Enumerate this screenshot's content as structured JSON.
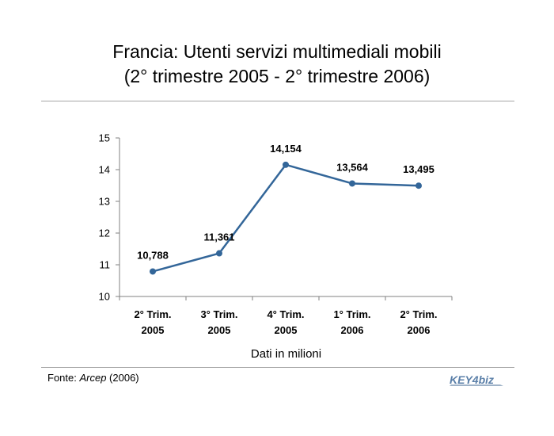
{
  "header": {
    "title_line1": "Francia: Utenti servizi multimediali mobili",
    "title_line2": "(2° trimestre 2005 - 2° trimestre 2006)"
  },
  "chart_data": {
    "type": "line",
    "title": "Francia: Utenti servizi multimediali mobili (2° trimestre 2005 - 2° trimestre 2006)",
    "categories": [
      [
        "2° Trim.",
        "2005"
      ],
      [
        "3° Trim.",
        "2005"
      ],
      [
        "4° Trim.",
        "2005"
      ],
      [
        "1° Trim.",
        "2006"
      ],
      [
        "2° Trim.",
        "2006"
      ]
    ],
    "series": [
      {
        "values": [
          10.788,
          11.361,
          14.154,
          13.564,
          13.495
        ],
        "labels": [
          "10,788",
          "11,361",
          "14,154",
          "13,564",
          "13,495"
        ],
        "color": "#336699"
      }
    ],
    "ylim": [
      10,
      15
    ],
    "yticks": [
      "10",
      "11",
      "12",
      "13",
      "14",
      "15"
    ],
    "xlabel": "Dati in milioni",
    "ylabel": "",
    "grid": false,
    "legend": "none"
  },
  "footer": {
    "source_prefix": "Fonte: ",
    "source_name": "Arcep",
    "source_suffix": " (2006)",
    "logo_text": "KEY4biz"
  }
}
